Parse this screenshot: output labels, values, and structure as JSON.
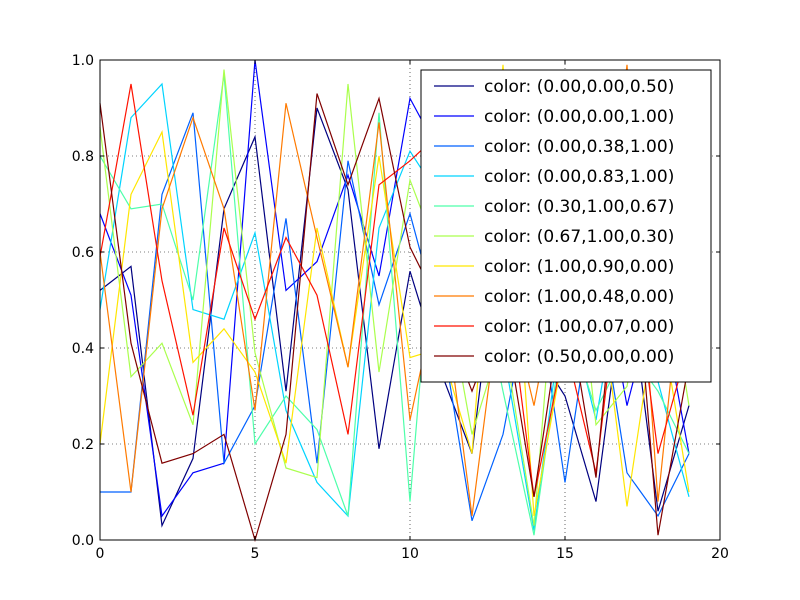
{
  "chart_data": {
    "type": "line",
    "title": "",
    "xlabel": "",
    "ylabel": "",
    "xlim": [
      0,
      20
    ],
    "ylim": [
      0.0,
      1.0
    ],
    "x_ticks": [
      "0",
      "5",
      "10",
      "15",
      "20"
    ],
    "y_ticks": [
      "0.0",
      "0.2",
      "0.4",
      "0.6",
      "0.8",
      "1.0"
    ],
    "grid": true,
    "legend_position": "top-right",
    "x": [
      0,
      1,
      2,
      3,
      4,
      5,
      6,
      7,
      8,
      9,
      10,
      11,
      12,
      13,
      14,
      15,
      16,
      17,
      18,
      19
    ],
    "series": [
      {
        "name": "color: (0.00,0.00,0.50)",
        "color": "#000080",
        "values": [
          0.52,
          0.57,
          0.03,
          0.17,
          0.69,
          0.84,
          0.31,
          0.9,
          0.73,
          0.19,
          0.56,
          0.35,
          0.18,
          0.71,
          0.4,
          0.3,
          0.08,
          0.57,
          0.06,
          0.28
        ]
      },
      {
        "name": "color: (0.00,0.00,1.00)",
        "color": "#0000ff",
        "values": [
          0.68,
          0.51,
          0.05,
          0.14,
          0.16,
          1.0,
          0.52,
          0.58,
          0.76,
          0.55,
          0.92,
          0.8,
          0.35,
          0.45,
          0.6,
          0.35,
          0.64,
          0.28,
          0.53,
          0.18
        ]
      },
      {
        "name": "color: (0.00,0.38,1.00)",
        "color": "#0061ff",
        "values": [
          0.1,
          0.1,
          0.72,
          0.89,
          0.16,
          0.28,
          0.67,
          0.16,
          0.79,
          0.49,
          0.68,
          0.44,
          0.04,
          0.22,
          0.56,
          0.12,
          0.55,
          0.14,
          0.05,
          0.18
        ]
      },
      {
        "name": "color: (0.00,0.83,1.00)",
        "color": "#00d4ff",
        "values": [
          0.48,
          0.88,
          0.95,
          0.48,
          0.46,
          0.64,
          0.27,
          0.12,
          0.05,
          0.65,
          0.81,
          0.71,
          0.45,
          0.4,
          0.02,
          0.51,
          0.25,
          0.63,
          0.33,
          0.09
        ]
      },
      {
        "name": "color: (0.30,1.00,0.67)",
        "color": "#4dffaa",
        "values": [
          0.8,
          0.69,
          0.7,
          0.5,
          0.97,
          0.2,
          0.3,
          0.23,
          0.05,
          0.89,
          0.08,
          0.85,
          0.62,
          0.31,
          0.01,
          0.47,
          0.27,
          0.4,
          0.31,
          0.18
        ]
      },
      {
        "name": "color: (0.67,1.00,0.30)",
        "color": "#aaff4d",
        "values": [
          0.86,
          0.34,
          0.41,
          0.24,
          0.98,
          0.39,
          0.15,
          0.13,
          0.95,
          0.35,
          0.75,
          0.58,
          0.22,
          0.43,
          0.03,
          0.82,
          0.24,
          0.32,
          0.68,
          0.28
        ]
      },
      {
        "name": "color: (1.00,0.90,0.00)",
        "color": "#ffe600",
        "values": [
          0.2,
          0.72,
          0.85,
          0.37,
          0.44,
          0.35,
          0.16,
          0.65,
          0.36,
          0.8,
          0.38,
          0.4,
          0.18,
          0.99,
          0.05,
          0.41,
          0.58,
          0.07,
          0.5,
          0.1
        ]
      },
      {
        "name": "color: (1.00,0.48,0.00)",
        "color": "#ff7a00",
        "values": [
          0.6,
          0.1,
          0.69,
          0.88,
          0.69,
          0.27,
          0.91,
          0.63,
          0.36,
          0.87,
          0.25,
          0.55,
          0.05,
          0.55,
          0.28,
          0.62,
          0.42,
          0.99,
          0.08,
          0.7
        ]
      },
      {
        "name": "color: (1.00,0.07,0.00)",
        "color": "#ff1200",
        "values": [
          0.59,
          0.95,
          0.54,
          0.26,
          0.65,
          0.46,
          0.63,
          0.51,
          0.22,
          0.74,
          0.79,
          0.85,
          0.47,
          0.6,
          0.09,
          0.41,
          0.14,
          0.68,
          0.18,
          0.41
        ]
      },
      {
        "name": "color: (0.50,0.00,0.00)",
        "color": "#800000",
        "values": [
          0.91,
          0.41,
          0.16,
          0.18,
          0.22,
          0.0,
          0.22,
          0.93,
          0.74,
          0.92,
          0.61,
          0.48,
          0.31,
          0.48,
          0.09,
          0.52,
          0.13,
          0.79,
          0.01,
          0.37
        ]
      }
    ]
  }
}
